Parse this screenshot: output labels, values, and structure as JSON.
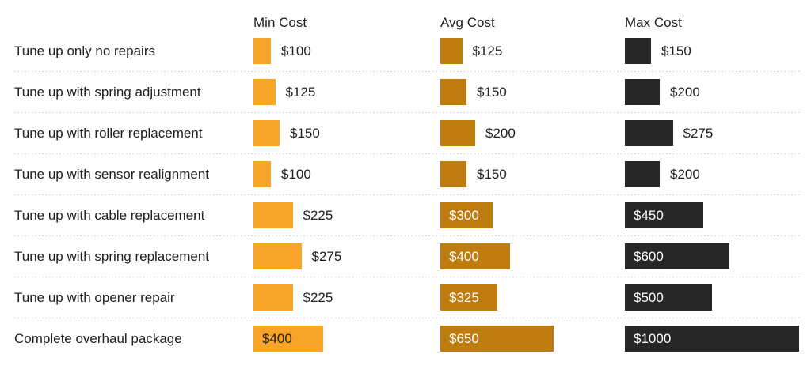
{
  "chart_data": {
    "type": "bar",
    "orientation": "horizontal",
    "title": "",
    "categories": [
      "Tune up only no repairs",
      "Tune up with spring adjustment",
      "Tune up with roller replacement",
      "Tune up with sensor realignment",
      "Tune up with cable replacement",
      "Tune up with spring replacement",
      "Tune up with opener repair",
      "Complete overhaul package"
    ],
    "series": [
      {
        "name": "Min Cost",
        "color": "#F7A428",
        "label_color_inside": "#212121",
        "values": [
          100,
          125,
          150,
          100,
          225,
          275,
          225,
          400
        ]
      },
      {
        "name": "Avg Cost",
        "color": "#BE7B0E",
        "label_color_inside": "#FFFFFF",
        "values": [
          125,
          150,
          200,
          150,
          300,
          400,
          325,
          650
        ]
      },
      {
        "name": "Max Cost",
        "color": "#262626",
        "label_color_inside": "#FFFFFF",
        "values": [
          150,
          200,
          275,
          200,
          450,
          600,
          500,
          1000
        ]
      }
    ],
    "value_prefix": "$",
    "xlim": [
      0,
      1000
    ],
    "grid": "off",
    "legend_position": "column-headers",
    "value_label_inside_threshold": 300
  },
  "styles": {
    "text_color": "#212121",
    "separator_color": "#CFCFCF",
    "background": "#FFFFFF"
  }
}
